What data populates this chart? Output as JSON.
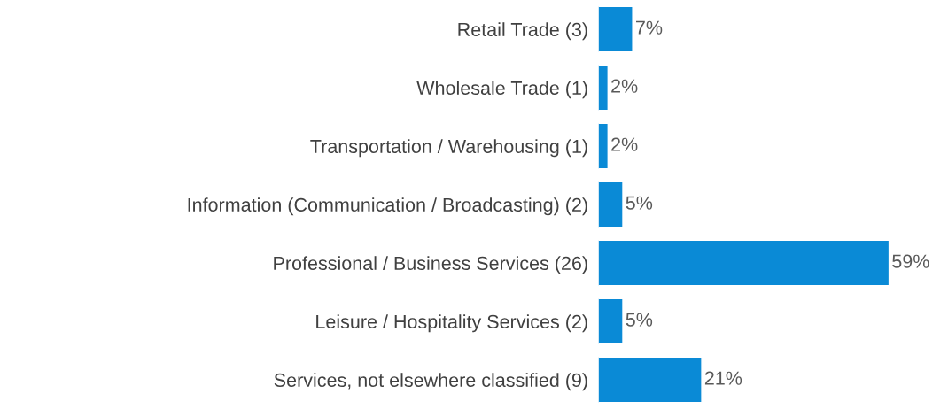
{
  "chart_data": {
    "type": "bar",
    "orientation": "horizontal",
    "categories": [
      "Retail Trade (3)",
      "Wholesale Trade (1)",
      "Transportation / Warehousing (1)",
      "Information (Communication / Broadcasting) (2)",
      "Professional / Business Services (26)",
      "Leisure / Hospitality Services (2)",
      "Services, not elsewhere classified (9)"
    ],
    "values": [
      7,
      2,
      2,
      5,
      59,
      5,
      21
    ],
    "value_labels": [
      "7%",
      "2%",
      "2%",
      "5%",
      "59%",
      "5%",
      "21%"
    ],
    "color": "#0a8ad6",
    "grid": false,
    "legend": false
  }
}
